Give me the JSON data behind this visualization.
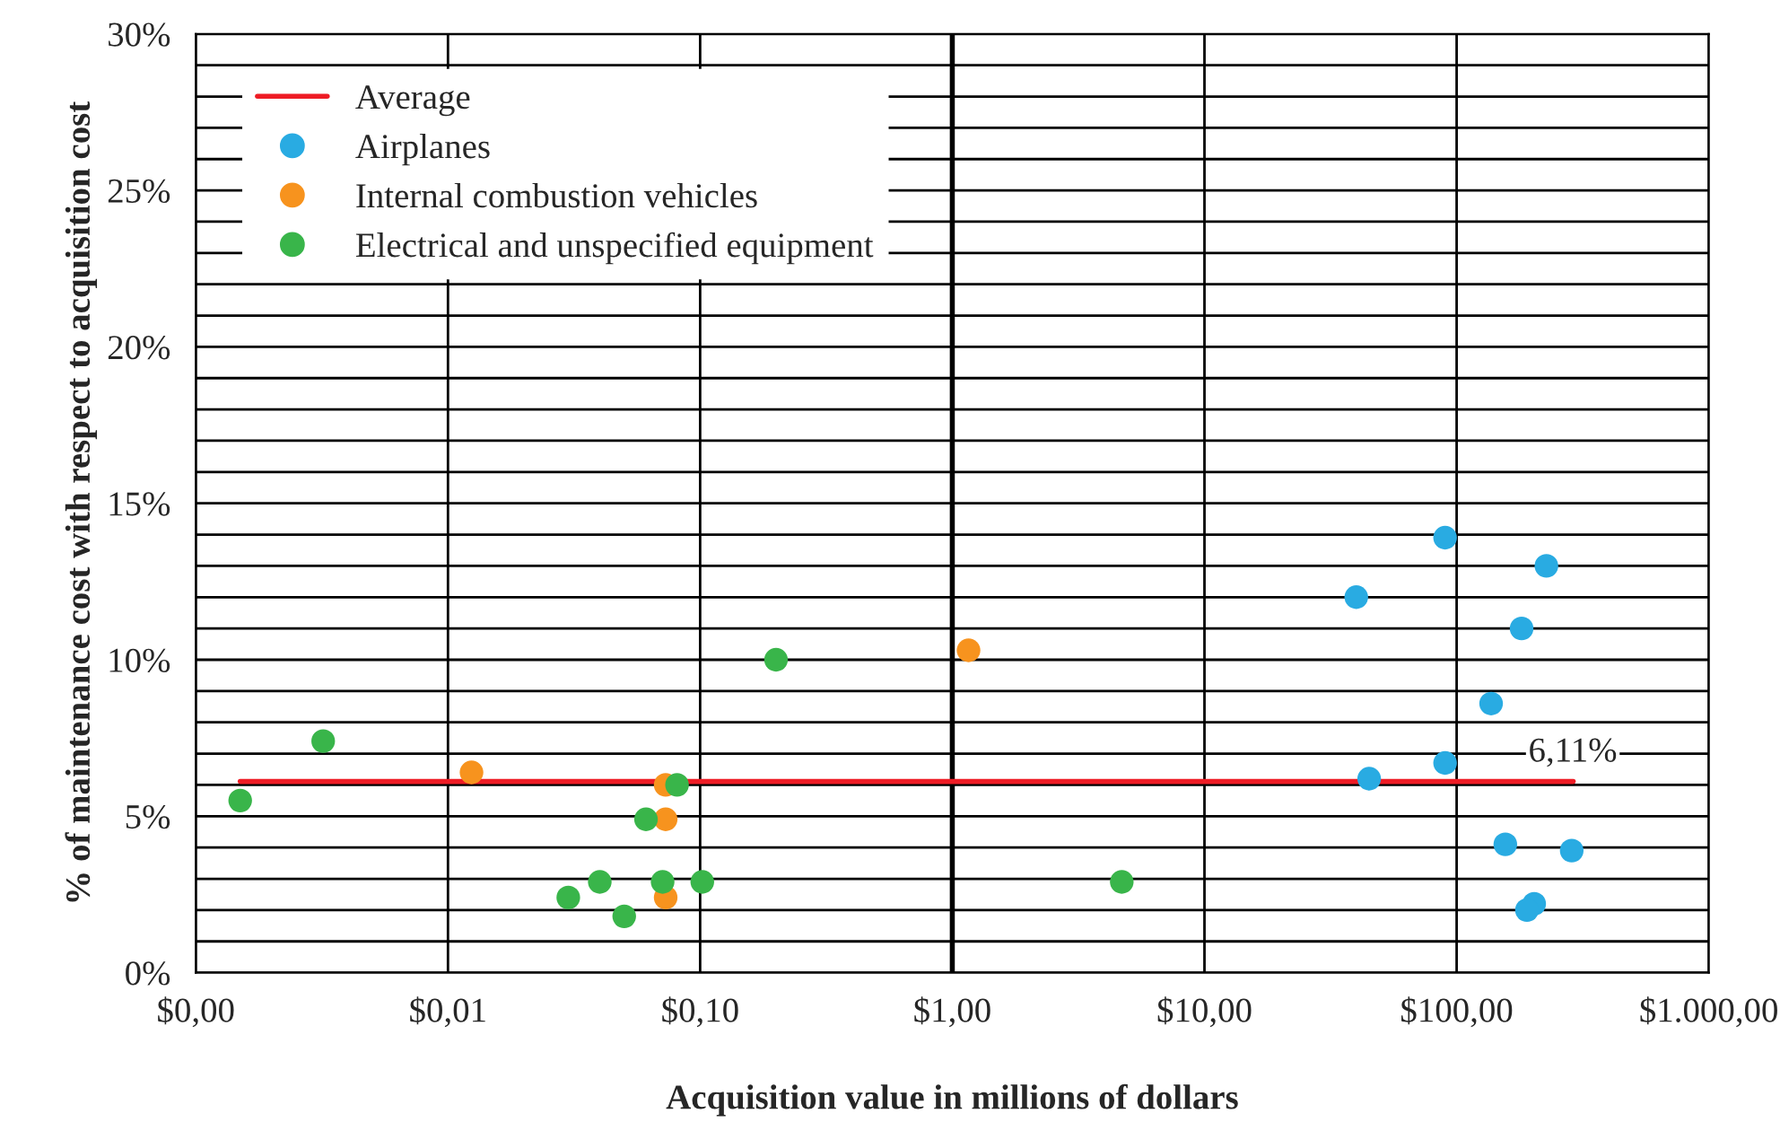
{
  "chart_data": {
    "type": "scatter",
    "xlabel": "Acquisition value in millions of dollars",
    "ylabel": "% of maintenance cost with respect to acquisition cost",
    "log": "x",
    "xlim": [
      0.001,
      1000
    ],
    "ylim": [
      0,
      30
    ],
    "xticks": [
      {
        "value": 0.001,
        "label": "$0,00"
      },
      {
        "value": 0.01,
        "label": "$0,01"
      },
      {
        "value": 0.1,
        "label": "$0,10"
      },
      {
        "value": 1,
        "label": "$1,00"
      },
      {
        "value": 10,
        "label": "$10,00"
      },
      {
        "value": 100,
        "label": "$100,00"
      },
      {
        "value": 1000,
        "label": "$1.000,00"
      }
    ],
    "yticks": [
      {
        "value": 0,
        "label": "0%"
      },
      {
        "value": 5,
        "label": "5%"
      },
      {
        "value": 10,
        "label": "10%"
      },
      {
        "value": 15,
        "label": "15%"
      },
      {
        "value": 20,
        "label": "20%"
      },
      {
        "value": 25,
        "label": "25%"
      },
      {
        "value": 30,
        "label": "30%"
      }
    ],
    "grid": true,
    "legend": "top left",
    "ref_lines": [
      {
        "axis": "x",
        "value": 1,
        "label": null,
        "color": "#000000"
      }
    ],
    "annotations": [
      {
        "text": "6,11%",
        "x": 290,
        "y": 6.11
      }
    ],
    "series": [
      {
        "name": "Average",
        "type": "line",
        "color": "#ee1c25",
        "x": [
          0.0015,
          290
        ],
        "values": [
          6.11,
          6.11
        ],
        "marker": "none"
      },
      {
        "name": "Airplanes",
        "color": "#29abe2",
        "marker": "circle",
        "x": [
          90,
          227,
          40,
          181,
          137,
          45,
          90,
          156,
          286,
          203,
          190
        ],
        "values": [
          13.9,
          13.0,
          12.0,
          11.0,
          8.6,
          6.2,
          6.7,
          4.1,
          3.9,
          2.2,
          2.0
        ]
      },
      {
        "name": "Internal combustion vehicles",
        "color": "#f7931e",
        "marker": "circle",
        "x": [
          1.16,
          0.0124,
          0.073,
          0.073,
          0.073
        ],
        "values": [
          10.3,
          6.4,
          6.0,
          4.9,
          2.4
        ]
      },
      {
        "name": "Electrical and unspecified equipment",
        "color": "#39b54a",
        "marker": "circle",
        "x": [
          0.0015,
          0.0032,
          0.2,
          0.081,
          0.061,
          0.04,
          0.03,
          0.05,
          0.071,
          0.102,
          4.7
        ],
        "values": [
          5.5,
          7.4,
          10.0,
          6.0,
          4.9,
          2.9,
          2.4,
          1.8,
          2.9,
          2.9,
          2.9
        ]
      }
    ]
  }
}
